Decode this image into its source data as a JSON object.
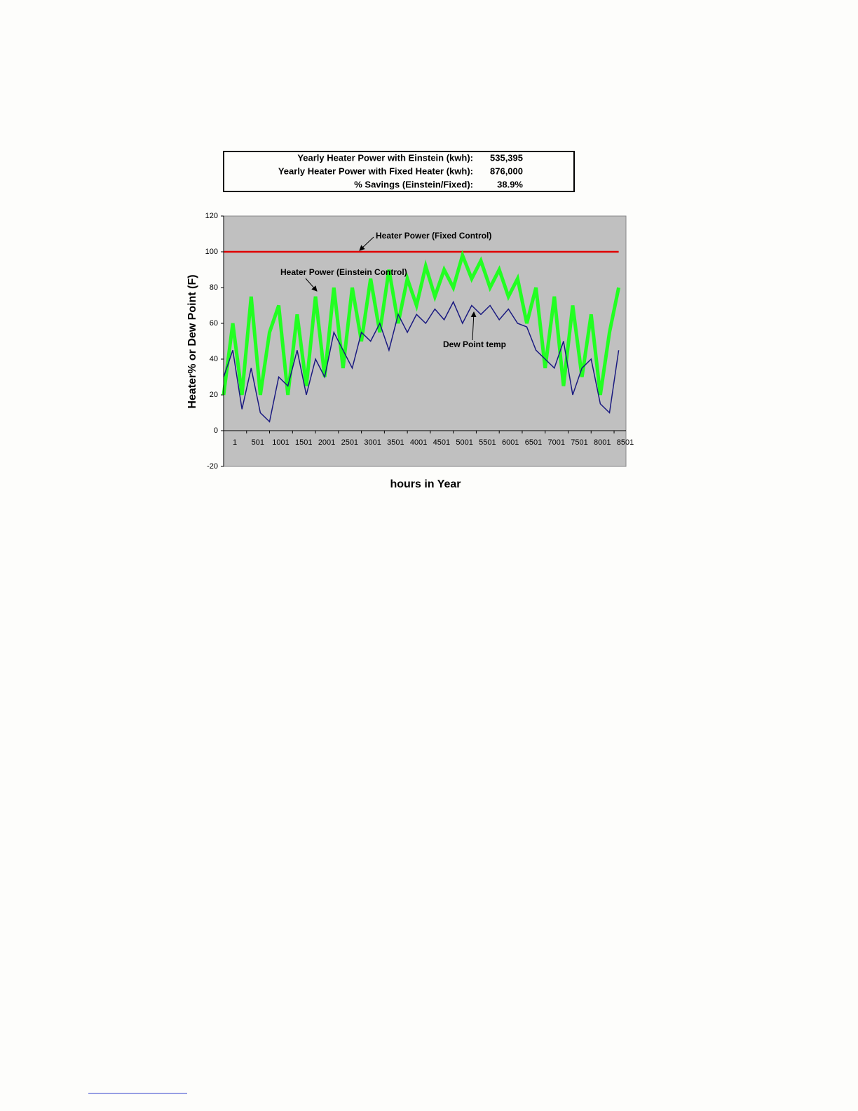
{
  "summary": {
    "rows": [
      {
        "label": "Yearly Heater Power with Einstein (kwh):",
        "value": "535,395"
      },
      {
        "label": "Yearly Heater Power with Fixed Heater (kwh):",
        "value": "876,000"
      },
      {
        "label": "% Savings (Einstein/Fixed):",
        "value": "38.9%"
      }
    ]
  },
  "chart_data": {
    "type": "line",
    "x_label": "hours in Year",
    "y_label": "Heater% or Dew Point (F)",
    "x": [
      1,
      201,
      401,
      601,
      801,
      1001,
      1201,
      1401,
      1601,
      1801,
      2001,
      2201,
      2401,
      2601,
      2801,
      3001,
      3201,
      3401,
      3601,
      3801,
      4001,
      4201,
      4401,
      4601,
      4801,
      5001,
      5201,
      5401,
      5601,
      5801,
      6001,
      6201,
      6401,
      6601,
      6801,
      7001,
      7201,
      7401,
      7601,
      7801,
      8001,
      8201,
      8401,
      8601
    ],
    "xlim": [
      1,
      8760
    ],
    "xticks": [
      1,
      501,
      1001,
      1501,
      2001,
      2501,
      3001,
      3501,
      4001,
      4501,
      5001,
      5501,
      6001,
      6501,
      7001,
      7501,
      8001,
      8501
    ],
    "ylim": [
      -20,
      120
    ],
    "yticks": [
      -20,
      0,
      20,
      40,
      60,
      80,
      100,
      120
    ],
    "series": [
      {
        "name": "Heater Power (Fixed Control)",
        "color": "#e00000",
        "values": [
          100,
          100,
          100,
          100,
          100,
          100,
          100,
          100,
          100,
          100,
          100,
          100,
          100,
          100,
          100,
          100,
          100,
          100,
          100,
          100,
          100,
          100,
          100,
          100,
          100,
          100,
          100,
          100,
          100,
          100,
          100,
          100,
          100,
          100,
          100,
          100,
          100,
          100,
          100,
          100,
          100,
          100,
          100,
          100
        ]
      },
      {
        "name": "Heater Power (Einstein Control)",
        "color": "#22ff22",
        "values": [
          20,
          60,
          20,
          75,
          20,
          55,
          70,
          20,
          65,
          25,
          75,
          30,
          80,
          35,
          80,
          50,
          85,
          55,
          90,
          60,
          85,
          70,
          92,
          75,
          90,
          80,
          98,
          85,
          95,
          80,
          90,
          75,
          85,
          60,
          80,
          35,
          75,
          25,
          70,
          30,
          65,
          20,
          55,
          80
        ]
      },
      {
        "name": "Dew Point temp",
        "color": "#1a1a80",
        "values": [
          30,
          45,
          12,
          35,
          10,
          5,
          30,
          25,
          45,
          20,
          40,
          30,
          55,
          45,
          35,
          55,
          50,
          60,
          45,
          65,
          55,
          65,
          60,
          68,
          62,
          72,
          60,
          70,
          65,
          70,
          62,
          68,
          60,
          58,
          45,
          40,
          35,
          50,
          20,
          35,
          40,
          15,
          10,
          45
        ]
      }
    ]
  }
}
